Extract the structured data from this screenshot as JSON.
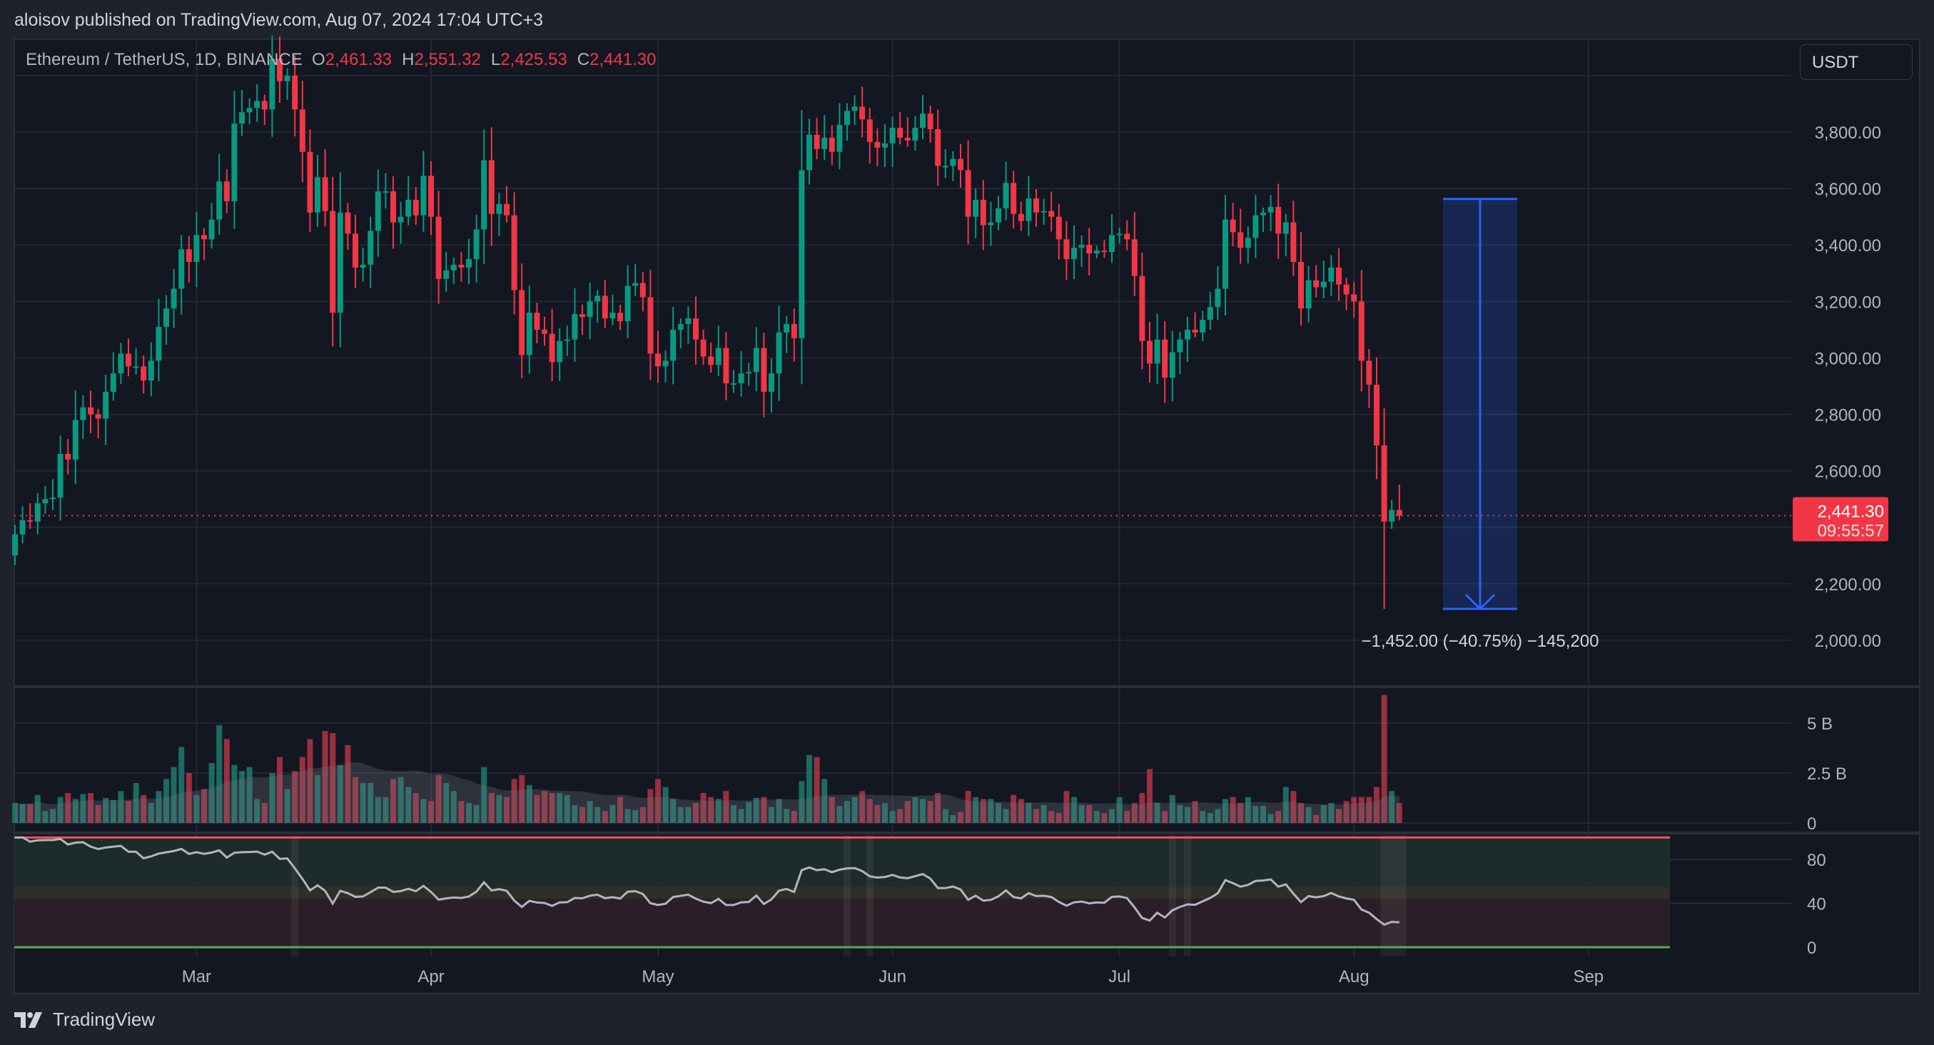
{
  "header": {
    "published": "aloisov published on TradingView.com, Aug 07, 2024 17:04 UTC+3"
  },
  "legend": {
    "symbol": "Ethereum / TetherUS, 1D, BINANCE",
    "o_label": "O",
    "o": "2,461.33",
    "h_label": "H",
    "h": "2,551.32",
    "l_label": "L",
    "l": "2,425.53",
    "c_label": "C",
    "c": "2,441.30"
  },
  "unit_button": "USDT",
  "price_label": {
    "price": "2,441.30",
    "countdown": "09:55:57"
  },
  "measure": {
    "label": "−1,452.00 (−40.75%) −145,200",
    "from": 3563,
    "to": 2111
  },
  "footer": {
    "brand": "TradingView"
  },
  "colors": {
    "up": "#089981",
    "down": "#f23645",
    "measure": "#2962ff",
    "background": "#131722"
  },
  "chart_data": {
    "type": "candlestick",
    "start_date": "2024-02-06",
    "interval": "1D",
    "price_axis": {
      "ticks": [
        "3,800.00",
        "3,600.00",
        "3,400.00",
        "3,200.00",
        "3,000.00",
        "2,800.00",
        "2,600.00",
        "2,200.00",
        "2,000.00"
      ],
      "tick_values": [
        3800,
        3600,
        3400,
        3200,
        3000,
        2800,
        2600,
        2200,
        2000
      ],
      "range": [
        1920,
        4100
      ]
    },
    "time_axis": {
      "ticks": [
        {
          "label": "Mar",
          "date": "2024-03-01"
        },
        {
          "label": "Apr",
          "date": "2024-04-01"
        },
        {
          "label": "May",
          "date": "2024-05-01"
        },
        {
          "label": "Jun",
          "date": "2024-06-01"
        },
        {
          "label": "Jul",
          "date": "2024-07-01"
        },
        {
          "label": "Aug",
          "date": "2024-08-01"
        },
        {
          "label": "Sep",
          "date": "2024-09-01"
        }
      ]
    },
    "first_open": 2300,
    "close": [
      2375,
      2425,
      2420,
      2485,
      2500,
      2505,
      2660,
      2640,
      2780,
      2825,
      2800,
      2785,
      2880,
      2945,
      3015,
      2970,
      2970,
      2920,
      2990,
      3110,
      3175,
      3245,
      3385,
      3340,
      3435,
      3420,
      3490,
      3625,
      3555,
      3830,
      3870,
      3885,
      3910,
      3880,
      4060,
      3980,
      4000,
      3880,
      3730,
      3515,
      3640,
      3520,
      3160,
      3515,
      3440,
      3320,
      3330,
      3450,
      3590,
      3590,
      3480,
      3500,
      3560,
      3505,
      3645,
      3500,
      3280,
      3310,
      3330,
      3320,
      3350,
      3455,
      3700,
      3510,
      3545,
      3505,
      3240,
      3010,
      3160,
      3100,
      3085,
      2985,
      3060,
      3065,
      3155,
      3145,
      3200,
      3220,
      3140,
      3160,
      3130,
      3255,
      3265,
      3215,
      3015,
      2970,
      2990,
      3100,
      3120,
      3140,
      3065,
      3005,
      2975,
      3035,
      2910,
      2910,
      2945,
      2950,
      3035,
      2880,
      2945,
      3090,
      3120,
      3070,
      3665,
      3790,
      3740,
      3780,
      3730,
      3825,
      3875,
      3890,
      3845,
      3765,
      3745,
      3760,
      3815,
      3780,
      3770,
      3815,
      3865,
      3810,
      3680,
      3680,
      3705,
      3665,
      3500,
      3560,
      3470,
      3480,
      3530,
      3620,
      3510,
      3485,
      3565,
      3515,
      3520,
      3500,
      3420,
      3350,
      3390,
      3400,
      3370,
      3380,
      3375,
      3435,
      3440,
      3420,
      3290,
      3060,
      2980,
      3065,
      2930,
      3020,
      3065,
      3100,
      3090,
      3135,
      3180,
      3245,
      3490,
      3445,
      3390,
      3425,
      3505,
      3515,
      3535,
      3440,
      3480,
      3340,
      3175,
      3275,
      3250,
      3270,
      3320,
      3260,
      3225,
      3200,
      2990,
      2905,
      2690,
      2420,
      2461.33,
      2441.3
    ],
    "known_extremes": [
      {
        "date": "2024-08-05",
        "low": 2111
      },
      {
        "date": "2024-08-07",
        "high": 2551.32,
        "low": 2425.53
      }
    ],
    "volume_axis": {
      "ticks": [
        "5 B",
        "2.5 B",
        "0"
      ],
      "tick_values": [
        5,
        2.5,
        0
      ],
      "unit": "B"
    },
    "volume": [
      1.0,
      0.95,
      0.95,
      1.4,
      0.6,
      0.7,
      1.3,
      1.5,
      1.2,
      1.45,
      1.5,
      0.9,
      1.25,
      1.15,
      1.6,
      1.1,
      2.0,
      1.4,
      1.0,
      1.6,
      2.2,
      2.8,
      3.8,
      2.5,
      1.4,
      1.7,
      3.0,
      4.9,
      4.2,
      2.9,
      2.6,
      2.8,
      1.2,
      1.0,
      2.5,
      3.3,
      1.7,
      2.6,
      3.3,
      4.2,
      2.4,
      4.6,
      4.5,
      2.9,
      3.9,
      2.3,
      2.0,
      2.0,
      1.3,
      1.3,
      2.2,
      2.3,
      1.8,
      1.5,
      1.2,
      1.1,
      2.4,
      2.0,
      1.6,
      1.1,
      1.0,
      0.9,
      2.8,
      1.5,
      1.4,
      1.3,
      2.2,
      2.4,
      1.9,
      1.4,
      1.6,
      1.5,
      1.5,
      1.4,
      0.9,
      0.8,
      1.1,
      0.8,
      0.6,
      0.9,
      1.3,
      0.7,
      0.65,
      0.8,
      1.7,
      2.2,
      1.8,
      1.2,
      0.8,
      0.8,
      1.0,
      1.5,
      1.3,
      1.2,
      1.6,
      0.9,
      0.7,
      1.05,
      1.25,
      1.3,
      0.8,
      1.2,
      0.7,
      0.6,
      2.1,
      3.4,
      3.3,
      2.2,
      1.3,
      0.85,
      1.1,
      1.3,
      1.6,
      1.2,
      0.9,
      1.0,
      0.6,
      0.7,
      1.1,
      1.3,
      1.2,
      1.1,
      1.5,
      0.7,
      0.4,
      0.55,
      1.6,
      1.3,
      1.2,
      1.2,
      1.0,
      0.7,
      1.4,
      1.2,
      1.0,
      0.7,
      0.9,
      0.6,
      0.5,
      1.6,
      1.3,
      0.9,
      0.9,
      0.6,
      0.5,
      0.7,
      1.3,
      0.6,
      1.0,
      1.5,
      2.7,
      1.0,
      0.6,
      1.4,
      0.9,
      0.8,
      1.1,
      0.6,
      0.5,
      0.7,
      1.2,
      1.3,
      1.0,
      1.3,
      0.85,
      0.85,
      0.45,
      0.6,
      1.8,
      1.6,
      1.0,
      0.8,
      0.4,
      0.9,
      1.0,
      0.7,
      1.1,
      1.3,
      1.3,
      1.3,
      1.8,
      6.4,
      1.6,
      1.0
    ],
    "oscillator": {
      "ticks": [
        "80",
        "40",
        "0"
      ],
      "tick_values": [
        80,
        40,
        0
      ],
      "upper_line": 100,
      "lower_line": 0,
      "zones": [
        {
          "from": 55,
          "to": 100,
          "color": "#1d2b2a"
        },
        {
          "from": 44,
          "to": 55,
          "color": "#2f2e27"
        },
        {
          "from": 0,
          "to": 44,
          "color": "#2b1e28"
        }
      ],
      "highlight_dates": [
        "2024-03-14",
        "2024-05-26",
        "2024-05-29",
        "2024-07-08",
        "2024-07-10",
        "2024-08-05"
      ]
    }
  }
}
